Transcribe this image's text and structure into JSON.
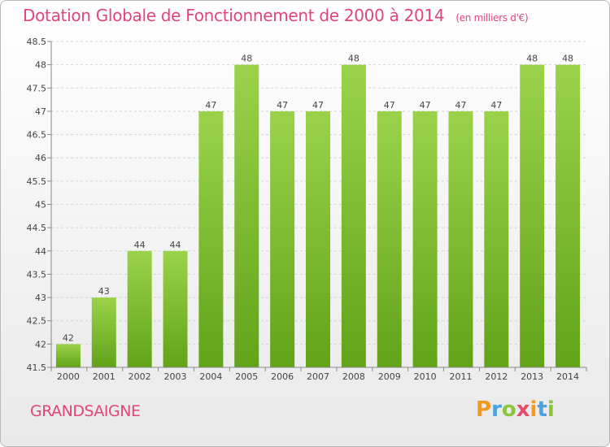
{
  "header": {
    "title": "Dotation Globale de Fonctionnement de 2000 à 2014",
    "subtitle": "(en milliers d'€)"
  },
  "footer": {
    "commune": "GRANDSAIGNE",
    "logo_text": "Proxiti"
  },
  "colors": {
    "accent": "#e0457b",
    "bar_top": "#9ad34a",
    "bar_bottom": "#62a318"
  },
  "chart_data": {
    "type": "bar",
    "categories": [
      "2000",
      "2001",
      "2002",
      "2003",
      "2004",
      "2005",
      "2006",
      "2007",
      "2008",
      "2009",
      "2010",
      "2011",
      "2012",
      "2013",
      "2014"
    ],
    "values": [
      42,
      43,
      44,
      44,
      47,
      48,
      47,
      47,
      48,
      47,
      47,
      47,
      47,
      48,
      48
    ],
    "ylim": [
      41.5,
      48.5
    ],
    "yticks": [
      "41.5",
      "42",
      "42.5",
      "43",
      "43.5",
      "44",
      "44.5",
      "45",
      "45.5",
      "46",
      "46.5",
      "47",
      "47.5",
      "48",
      "48.5"
    ],
    "grid": true
  }
}
